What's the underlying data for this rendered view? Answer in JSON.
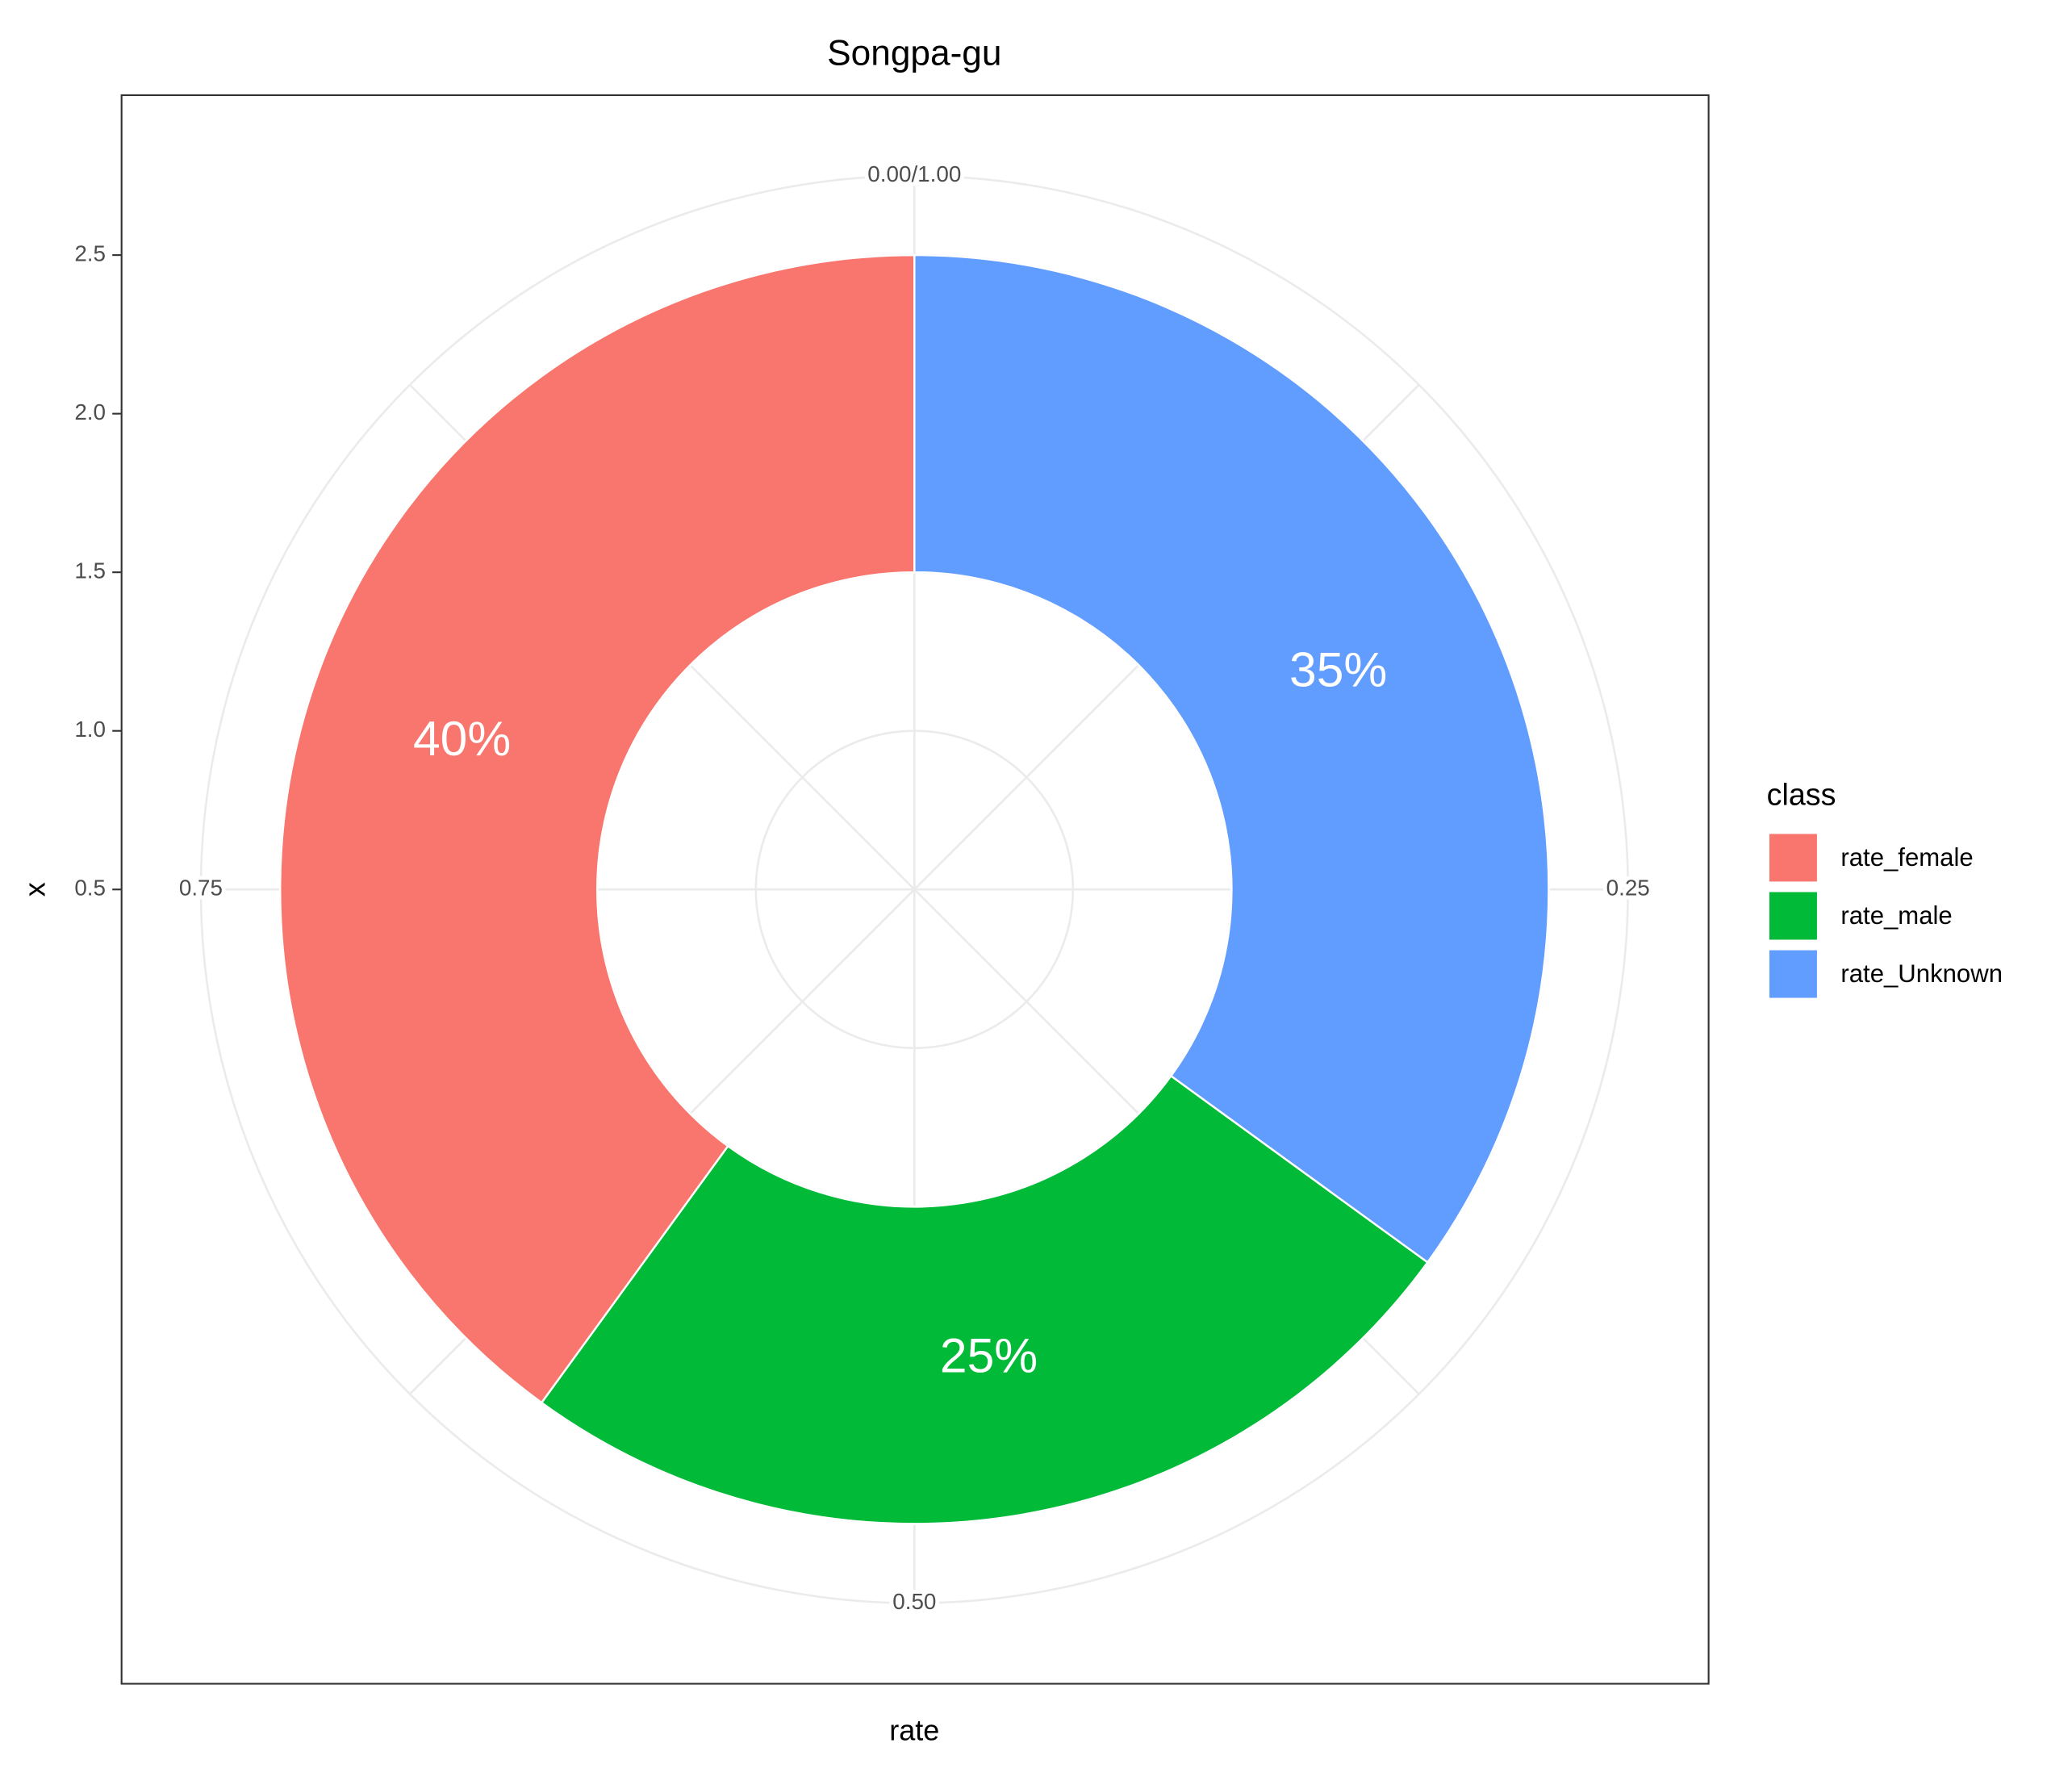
{
  "chart_data": {
    "type": "donut",
    "title": "Songpa-gu",
    "x_label": "rate",
    "y_label": "x",
    "legend_title": "class",
    "series": [
      {
        "name": "rate_female",
        "color": "#F8766D",
        "values": [
          0.4
        ],
        "value_labels": [
          "40%"
        ]
      },
      {
        "name": "rate_male",
        "color": "#00BA38",
        "values": [
          0.25
        ],
        "value_labels": [
          "25%"
        ]
      },
      {
        "name": "rate_Unknown",
        "color": "#619CFF",
        "values": [
          0.35
        ],
        "value_labels": [
          "35%"
        ]
      }
    ],
    "xlim": [
      0,
      1
    ],
    "xticks": [
      {
        "value": 0,
        "label": "0.00/1.00"
      },
      0.25,
      {
        "value": 0.5,
        "label": "0.50"
      },
      0.75
    ],
    "ylim": [
      0.5,
      2.75
    ],
    "yticks": [
      0.5,
      {
        "value": 1,
        "label": "1.0"
      },
      1.5,
      {
        "value": 2,
        "label": "2.0"
      },
      2.5
    ],
    "grid": true,
    "legend": "right"
  }
}
